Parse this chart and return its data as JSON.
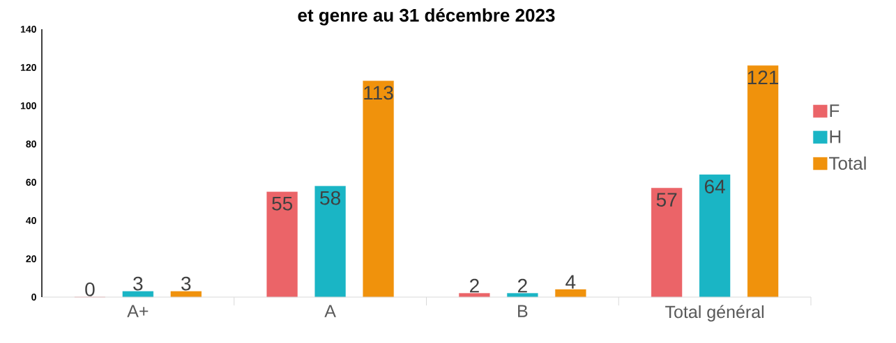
{
  "chart_data": {
    "type": "bar",
    "title": "et genre au 31 décembre 2023",
    "categories": [
      "A+",
      "A",
      "B",
      "Total général"
    ],
    "series": [
      {
        "name": "F",
        "color": "#eb6468",
        "values": [
          0,
          55,
          2,
          57
        ]
      },
      {
        "name": "H",
        "color": "#1ab5c5",
        "values": [
          3,
          58,
          2,
          64
        ]
      },
      {
        "name": "Total",
        "color": "#f0920c",
        "values": [
          3,
          113,
          4,
          121
        ]
      }
    ],
    "ylim": [
      0,
      140
    ],
    "yticks": [
      0,
      20,
      40,
      60,
      80,
      100,
      120,
      140
    ],
    "data_labels": true,
    "legend": "right",
    "grid": false
  }
}
